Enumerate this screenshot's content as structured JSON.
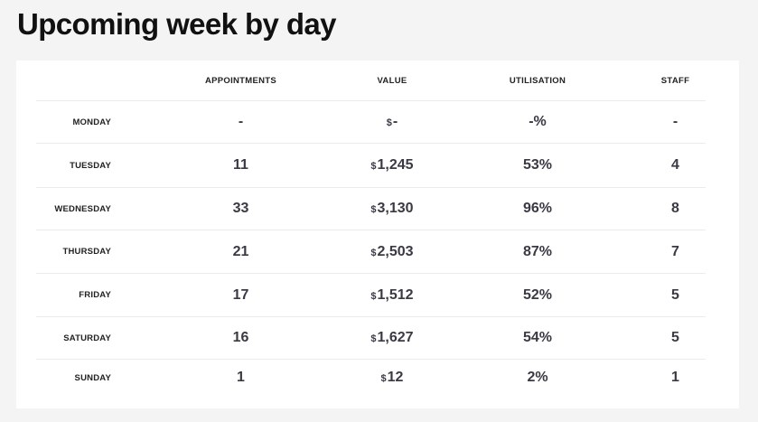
{
  "page_title": "Upcoming week by day",
  "table": {
    "headers": {
      "appointments": "APPOINTMENTS",
      "value": "VALUE",
      "utilisation": "UTILISATION",
      "staff": "STAFF"
    },
    "currency_symbol": "$",
    "rows": [
      {
        "day": "MONDAY",
        "appointments": "-",
        "value": "-",
        "utilisation": "-%",
        "staff": "-"
      },
      {
        "day": "TUESDAY",
        "appointments": "11",
        "value": "1,245",
        "utilisation": "53%",
        "staff": "4"
      },
      {
        "day": "WEDNESDAY",
        "appointments": "33",
        "value": "3,130",
        "utilisation": "96%",
        "staff": "8"
      },
      {
        "day": "THURSDAY",
        "appointments": "21",
        "value": "2,503",
        "utilisation": "87%",
        "staff": "7"
      },
      {
        "day": "FRIDAY",
        "appointments": "17",
        "value": "1,512",
        "utilisation": "52%",
        "staff": "5"
      },
      {
        "day": "SATURDAY",
        "appointments": "16",
        "value": "1,627",
        "utilisation": "54%",
        "staff": "5"
      },
      {
        "day": "SUNDAY",
        "appointments": "1",
        "value": "12",
        "utilisation": "2%",
        "staff": "1"
      }
    ]
  }
}
